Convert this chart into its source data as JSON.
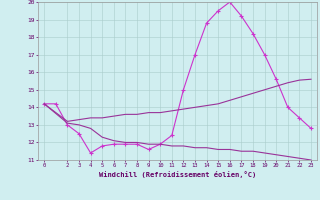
{
  "xlabel": "Windchill (Refroidissement éolien,°C)",
  "xlim": [
    -0.5,
    23.5
  ],
  "ylim": [
    11,
    20
  ],
  "yticks": [
    11,
    12,
    13,
    14,
    15,
    16,
    17,
    18,
    19,
    20
  ],
  "xticks": [
    0,
    2,
    3,
    4,
    5,
    6,
    7,
    8,
    9,
    10,
    11,
    12,
    13,
    14,
    15,
    16,
    17,
    18,
    19,
    20,
    21,
    22,
    23
  ],
  "bg_color": "#d0eef0",
  "line_color_main": "#cc33cc",
  "line_color_upper": "#993399",
  "line_color_lower": "#993399",
  "main_x": [
    0,
    1,
    2,
    3,
    4,
    5,
    6,
    7,
    8,
    9,
    10,
    11,
    12,
    13,
    14,
    15,
    16,
    17,
    18,
    19,
    20,
    21,
    22,
    23
  ],
  "main_y": [
    14.2,
    14.2,
    13.0,
    12.5,
    11.4,
    11.8,
    11.9,
    11.9,
    11.9,
    11.6,
    11.9,
    12.4,
    15.0,
    17.0,
    18.8,
    19.5,
    20.0,
    19.2,
    18.2,
    17.0,
    15.6,
    14.0,
    13.4,
    12.8
  ],
  "upper_x": [
    0,
    2,
    3,
    4,
    5,
    6,
    7,
    8,
    9,
    10,
    11,
    12,
    13,
    14,
    15,
    16,
    17,
    18,
    19,
    20,
    21,
    22,
    23
  ],
  "upper_y": [
    14.2,
    13.2,
    13.3,
    13.4,
    13.4,
    13.5,
    13.6,
    13.6,
    13.7,
    13.7,
    13.8,
    13.9,
    14.0,
    14.1,
    14.2,
    14.4,
    14.6,
    14.8,
    15.0,
    15.2,
    15.4,
    15.55,
    15.6
  ],
  "lower_x": [
    0,
    2,
    3,
    4,
    5,
    6,
    7,
    8,
    9,
    10,
    11,
    12,
    13,
    14,
    15,
    16,
    17,
    18,
    19,
    20,
    21,
    22,
    23
  ],
  "lower_y": [
    14.2,
    13.1,
    13.0,
    12.8,
    12.3,
    12.1,
    12.0,
    12.0,
    11.9,
    11.9,
    11.8,
    11.8,
    11.7,
    11.7,
    11.6,
    11.6,
    11.5,
    11.5,
    11.4,
    11.3,
    11.2,
    11.1,
    11.0
  ]
}
